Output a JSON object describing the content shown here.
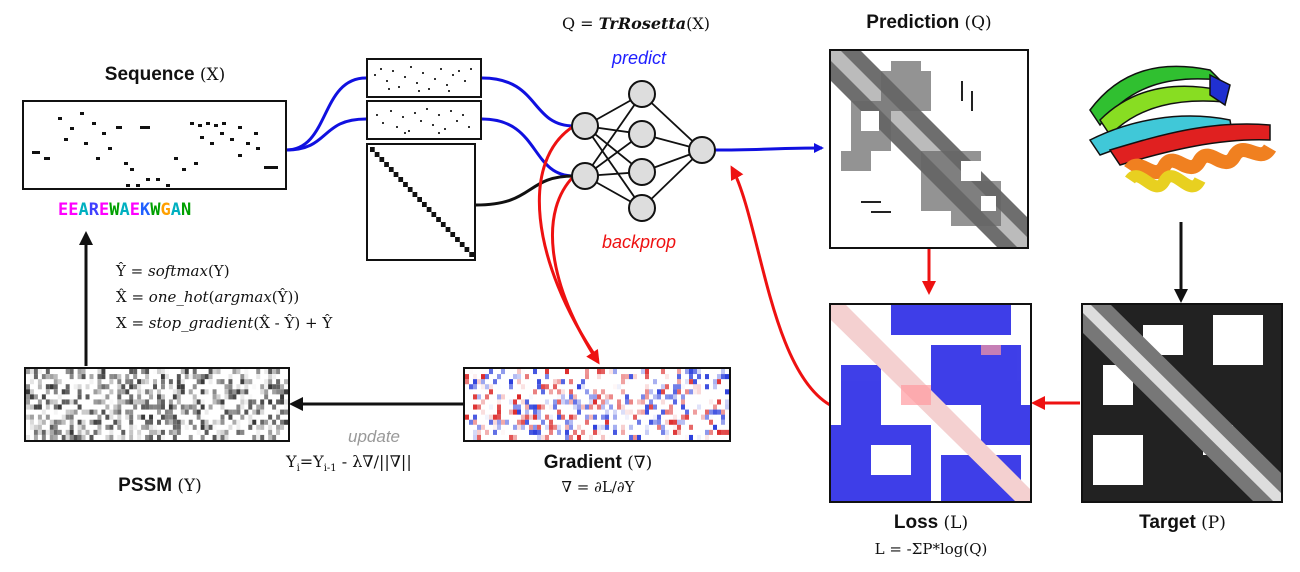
{
  "sequence": {
    "title": "Sequence",
    "symbol": "(X)",
    "letters": [
      "E",
      "E",
      "A",
      "R",
      "E",
      "W",
      "A",
      "E",
      "K",
      "W",
      "G",
      "A",
      "N"
    ],
    "letter_colors": [
      "#ff00ff",
      "#ff00ff",
      "#00b0c0",
      "#4040ff",
      "#ff00ff",
      "#00a000",
      "#00b0c0",
      "#ff00ff",
      "#2060ff",
      "#00a000",
      "#ffa000",
      "#00b0c0",
      "#00a000"
    ]
  },
  "network": {
    "formula_prefix": "Q = ",
    "formula_name": "TrRosetta",
    "formula_suffix": "(X)",
    "predict_label": "predict",
    "backprop_label": "backprop"
  },
  "prediction": {
    "title": "Prediction",
    "symbol": "(Q)"
  },
  "loss": {
    "title": "Loss",
    "symbol": "(L)",
    "formula": "L = -ΣP*log(Q)"
  },
  "target": {
    "title": "Target",
    "symbol": "(P)"
  },
  "gradient": {
    "title": "Gradient",
    "symbol": "(∇)",
    "formula": "∇ = ∂L/∂Y"
  },
  "pssm": {
    "title": "PSSM",
    "symbol": "(Y)"
  },
  "update": {
    "label": "update",
    "y": "Y",
    "i": "i",
    "eq": "=Y",
    "im1": "i-1",
    "rest": " - λ∇/||∇||"
  },
  "equations": {
    "line1_lhs": "Ŷ = ",
    "line1_fn": "softmax",
    "line1_rhs": "(Y)",
    "line2_lhs": "X̂ = ",
    "line2_fn": "one_hot",
    "line2_mid": "(",
    "line2_fn2": "argmax",
    "line2_rhs": "(Ŷ))",
    "line3_lhs": "X = ",
    "line3_fn": "stop_gradient",
    "line3_rhs": "(X̂ - Ŷ) + Ŷ"
  },
  "colors": {
    "forward": "#1010e0",
    "backward": "#ee1111",
    "black": "#111111",
    "node_fill": "#dddddd",
    "predict_text": "#2020ff",
    "backprop_text": "#ee1111",
    "update_text": "#999999"
  }
}
